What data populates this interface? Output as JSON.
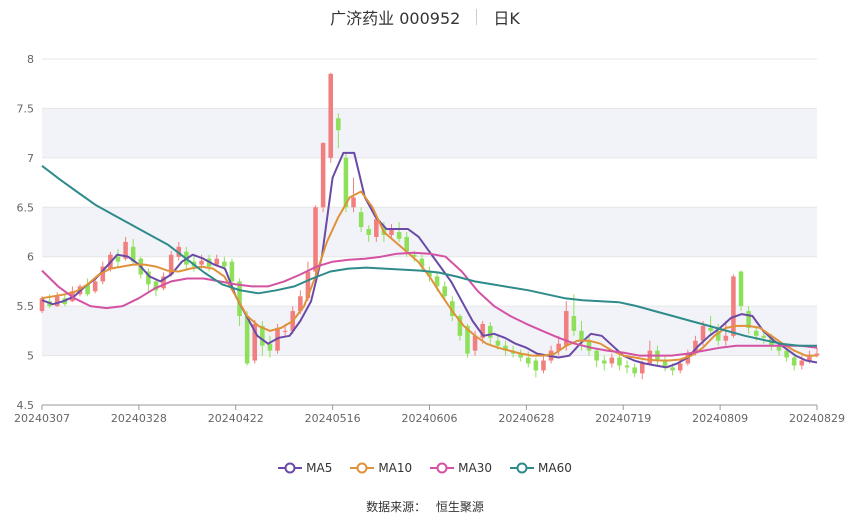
{
  "title": {
    "name": "广济药业 000952",
    "period": "日K"
  },
  "legend": [
    {
      "name": "MA5",
      "color": "#6a4aa6"
    },
    {
      "name": "MA10",
      "color": "#e0923a"
    },
    {
      "name": "MA30",
      "color": "#d452a3"
    },
    {
      "name": "MA60",
      "color": "#2f8b8b"
    }
  ],
  "source": {
    "label": "数据来源：",
    "value": "恒生聚源"
  },
  "colors": {
    "up": "#f17f7f",
    "down": "#8ee05a",
    "band": "#f2f3f9"
  },
  "chart_data": {
    "type": "candlestick",
    "title": "广济药业 000952 日K",
    "x_ticks": [
      "20240307",
      "20240328",
      "20240422",
      "20240516",
      "20240606",
      "20240628",
      "20240719",
      "20240809",
      "20240829"
    ],
    "y_ticks": [
      "4.5",
      "5",
      "5.5",
      "6",
      "6.5",
      "7",
      "7.5",
      "8"
    ],
    "ylim": [
      4.5,
      8
    ],
    "grid": true,
    "legend_position": "bottom",
    "candles_approx": [
      [
        0,
        5.45,
        5.58,
        5.6,
        5.43
      ],
      [
        1,
        5.55,
        5.5,
        5.62,
        5.48
      ],
      [
        2,
        5.5,
        5.6,
        5.64,
        5.49
      ],
      [
        3,
        5.58,
        5.52,
        5.62,
        5.5
      ],
      [
        4,
        5.55,
        5.65,
        5.7,
        5.54
      ],
      [
        5,
        5.62,
        5.7,
        5.72,
        5.6
      ],
      [
        6,
        5.72,
        5.62,
        5.78,
        5.6
      ],
      [
        7,
        5.65,
        5.75,
        5.8,
        5.63
      ],
      [
        8,
        5.75,
        5.9,
        5.95,
        5.72
      ],
      [
        9,
        5.88,
        6.02,
        6.05,
        5.85
      ],
      [
        10,
        6.0,
        5.95,
        6.08,
        5.9
      ],
      [
        11,
        5.98,
        6.15,
        6.2,
        5.96
      ],
      [
        12,
        6.1,
        5.95,
        6.18,
        5.92
      ],
      [
        13,
        5.98,
        5.82,
        6.0,
        5.78
      ],
      [
        14,
        5.85,
        5.72,
        5.88,
        5.65
      ],
      [
        15,
        5.75,
        5.66,
        5.78,
        5.6
      ],
      [
        16,
        5.68,
        5.8,
        5.84,
        5.66
      ],
      [
        17,
        5.82,
        6.02,
        6.06,
        5.8
      ],
      [
        18,
        6.0,
        6.1,
        6.15,
        5.96
      ],
      [
        19,
        6.05,
        5.92,
        6.1,
        5.88
      ],
      [
        20,
        5.95,
        5.9,
        6.02,
        5.85
      ],
      [
        21,
        5.92,
        5.96,
        6.02,
        5.88
      ],
      [
        22,
        5.98,
        5.9,
        6.02,
        5.85
      ],
      [
        23,
        5.92,
        5.98,
        6.02,
        5.9
      ],
      [
        24,
        5.95,
        5.9,
        6.0,
        5.86
      ],
      [
        25,
        5.95,
        5.75,
        5.98,
        5.72
      ],
      [
        26,
        5.75,
        5.4,
        5.78,
        5.3
      ],
      [
        27,
        5.4,
        4.92,
        5.45,
        4.9
      ],
      [
        28,
        4.95,
        5.32,
        5.36,
        4.92
      ],
      [
        29,
        5.3,
        5.1,
        5.35,
        5.0
      ],
      [
        30,
        5.12,
        5.05,
        5.2,
        4.98
      ],
      [
        31,
        5.05,
        5.28,
        5.32,
        5.02
      ],
      [
        32,
        5.25,
        5.25,
        5.32,
        5.2
      ],
      [
        33,
        5.25,
        5.45,
        5.5,
        5.22
      ],
      [
        34,
        5.45,
        5.6,
        5.66,
        5.42
      ],
      [
        35,
        5.58,
        5.85,
        5.95,
        5.55
      ],
      [
        36,
        5.85,
        6.5,
        6.52,
        5.82
      ],
      [
        37,
        6.5,
        7.15,
        7.16,
        6.45
      ],
      [
        38,
        7.0,
        7.85,
        7.86,
        6.95
      ],
      [
        39,
        7.4,
        7.28,
        7.45,
        7.1
      ],
      [
        40,
        7.0,
        6.5,
        7.05,
        6.45
      ],
      [
        41,
        6.5,
        6.6,
        6.8,
        6.45
      ],
      [
        42,
        6.45,
        6.3,
        6.5,
        6.25
      ],
      [
        43,
        6.28,
        6.22,
        6.32,
        6.15
      ],
      [
        44,
        6.2,
        6.38,
        6.4,
        6.15
      ],
      [
        45,
        6.3,
        6.22,
        6.35,
        6.15
      ],
      [
        46,
        6.22,
        6.28,
        6.33,
        6.18
      ],
      [
        47,
        6.25,
        6.18,
        6.35,
        6.15
      ],
      [
        48,
        6.2,
        6.05,
        6.25,
        6.0
      ],
      [
        49,
        6.02,
        6.0,
        6.06,
        5.95
      ],
      [
        50,
        5.98,
        5.9,
        6.02,
        5.85
      ],
      [
        51,
        5.85,
        5.8,
        5.9,
        5.75
      ],
      [
        52,
        5.8,
        5.7,
        5.85,
        5.65
      ],
      [
        53,
        5.7,
        5.6,
        5.75,
        5.55
      ],
      [
        54,
        5.55,
        5.4,
        5.6,
        5.35
      ],
      [
        55,
        5.4,
        5.2,
        5.42,
        5.15
      ],
      [
        56,
        5.3,
        5.02,
        5.32,
        4.98
      ],
      [
        57,
        5.05,
        5.2,
        5.25,
        5.0
      ],
      [
        58,
        5.18,
        5.32,
        5.35,
        5.12
      ],
      [
        59,
        5.3,
        5.18,
        5.34,
        5.12
      ],
      [
        60,
        5.15,
        5.1,
        5.2,
        5.06
      ],
      [
        61,
        5.1,
        5.05,
        5.15,
        5.0
      ],
      [
        62,
        5.05,
        5.02,
        5.1,
        4.98
      ],
      [
        63,
        5.02,
        4.98,
        5.06,
        4.94
      ],
      [
        64,
        4.98,
        4.92,
        5.04,
        4.88
      ],
      [
        65,
        4.95,
        4.85,
        4.98,
        4.78
      ],
      [
        66,
        4.85,
        4.95,
        5.0,
        4.82
      ],
      [
        67,
        4.95,
        5.05,
        5.1,
        4.92
      ],
      [
        68,
        5.05,
        5.12,
        5.2,
        5.0
      ],
      [
        69,
        5.1,
        5.45,
        5.55,
        5.05
      ],
      [
        70,
        5.4,
        5.25,
        5.62,
        5.2
      ],
      [
        71,
        5.25,
        5.15,
        5.35,
        5.05
      ],
      [
        72,
        5.15,
        5.05,
        5.2,
        5.0
      ],
      [
        73,
        5.05,
        4.95,
        5.08,
        4.88
      ],
      [
        74,
        4.95,
        4.92,
        5.0,
        4.85
      ],
      [
        75,
        4.92,
        4.98,
        5.02,
        4.88
      ],
      [
        76,
        4.98,
        4.9,
        5.02,
        4.85
      ],
      [
        77,
        4.9,
        4.88,
        4.95,
        4.82
      ],
      [
        78,
        4.88,
        4.82,
        4.92,
        4.78
      ],
      [
        79,
        4.82,
        4.92,
        4.95,
        4.76
      ],
      [
        80,
        4.92,
        5.05,
        5.15,
        4.9
      ],
      [
        81,
        5.05,
        4.95,
        5.1,
        4.9
      ],
      [
        82,
        4.95,
        4.88,
        5.0,
        4.84
      ],
      [
        83,
        4.88,
        4.85,
        4.92,
        4.8
      ],
      [
        84,
        4.85,
        4.92,
        4.96,
        4.82
      ],
      [
        85,
        4.92,
        5.02,
        5.06,
        4.9
      ],
      [
        86,
        5.02,
        5.15,
        5.2,
        5.0
      ],
      [
        87,
        5.15,
        5.3,
        5.35,
        5.1
      ],
      [
        88,
        5.28,
        5.25,
        5.4,
        5.2
      ],
      [
        89,
        5.25,
        5.15,
        5.32,
        5.1
      ],
      [
        90,
        5.15,
        5.2,
        5.35,
        5.1
      ],
      [
        91,
        5.2,
        5.8,
        5.82,
        5.18
      ],
      [
        92,
        5.85,
        5.5,
        5.86,
        5.45
      ],
      [
        93,
        5.45,
        5.28,
        5.5,
        5.22
      ],
      [
        94,
        5.25,
        5.2,
        5.3,
        5.15
      ],
      [
        95,
        5.2,
        5.18,
        5.25,
        5.12
      ],
      [
        96,
        5.18,
        5.1,
        5.22,
        5.05
      ],
      [
        97,
        5.1,
        5.05,
        5.15,
        5.0
      ],
      [
        98,
        5.05,
        4.98,
        5.08,
        4.94
      ],
      [
        99,
        4.98,
        4.9,
        5.02,
        4.85
      ],
      [
        100,
        4.9,
        4.95,
        5.0,
        4.86
      ],
      [
        101,
        4.95,
        5.0,
        5.05,
        4.92
      ],
      [
        102,
        5.0,
        5.02,
        5.08,
        4.98
      ]
    ],
    "series": [
      {
        "name": "MA5",
        "values": [
          5.56,
          5.52,
          5.55,
          5.6,
          5.7,
          5.78,
          5.9,
          6.02,
          6.0,
          5.92,
          5.8,
          5.75,
          5.82,
          5.95,
          6.02,
          5.98,
          5.92,
          5.88,
          5.6,
          5.4,
          5.2,
          5.12,
          5.18,
          5.2,
          5.35,
          5.55,
          6.0,
          6.8,
          7.05,
          7.05,
          6.6,
          6.4,
          6.28,
          6.28,
          6.28,
          6.2,
          6.05,
          5.9,
          5.75,
          5.55,
          5.35,
          5.2,
          5.22,
          5.18,
          5.12,
          5.08,
          5.02,
          5.0,
          4.98,
          5.0,
          5.12,
          5.22,
          5.2,
          5.1,
          5.0,
          4.95,
          4.92,
          4.9,
          4.88,
          4.92,
          4.98,
          5.1,
          5.2,
          5.28,
          5.38,
          5.42,
          5.4,
          5.25,
          5.15,
          5.08,
          5.0,
          4.95,
          4.93
        ]
      },
      {
        "name": "MA10",
        "values": [
          5.58,
          5.6,
          5.62,
          5.65,
          5.72,
          5.82,
          5.88,
          5.9,
          5.92,
          5.92,
          5.9,
          5.86,
          5.85,
          5.88,
          5.9,
          5.88,
          5.8,
          5.6,
          5.4,
          5.3,
          5.25,
          5.28,
          5.35,
          5.5,
          5.8,
          6.15,
          6.4,
          6.6,
          6.66,
          6.5,
          6.25,
          6.15,
          6.05,
          5.95,
          5.8,
          5.62,
          5.45,
          5.3,
          5.2,
          5.12,
          5.08,
          5.05,
          5.02,
          5.0,
          5.0,
          5.02,
          5.1,
          5.15,
          5.15,
          5.12,
          5.05,
          5.0,
          4.98,
          4.96,
          4.95,
          4.95,
          4.96,
          5.0,
          5.08,
          5.2,
          5.28,
          5.3,
          5.3,
          5.28,
          5.2,
          5.12,
          5.05,
          5.0,
          5.0
        ]
      },
      {
        "name": "MA30",
        "values": [
          5.86,
          5.7,
          5.58,
          5.5,
          5.48,
          5.5,
          5.58,
          5.68,
          5.75,
          5.78,
          5.78,
          5.75,
          5.72,
          5.7,
          5.7,
          5.75,
          5.82,
          5.9,
          5.95,
          5.97,
          5.98,
          6.0,
          6.03,
          6.04,
          6.03,
          6.0,
          5.85,
          5.65,
          5.5,
          5.4,
          5.32,
          5.25,
          5.18,
          5.12,
          5.08,
          5.05,
          5.03,
          5.0,
          5.0,
          5.0,
          5.02,
          5.05,
          5.08,
          5.1,
          5.1,
          5.1,
          5.1,
          5.1,
          5.08
        ]
      },
      {
        "name": "MA60",
        "values": [
          6.92,
          6.78,
          6.65,
          6.52,
          6.42,
          6.32,
          6.22,
          6.12,
          5.98,
          5.84,
          5.72,
          5.66,
          5.63,
          5.66,
          5.7,
          5.78,
          5.85,
          5.88,
          5.89,
          5.88,
          5.87,
          5.86,
          5.84,
          5.8,
          5.75,
          5.72,
          5.69,
          5.66,
          5.62,
          5.58,
          5.56,
          5.55,
          5.54,
          5.5,
          5.45,
          5.4,
          5.35,
          5.3,
          5.25,
          5.2,
          5.16,
          5.12,
          5.1,
          5.1
        ]
      }
    ]
  }
}
